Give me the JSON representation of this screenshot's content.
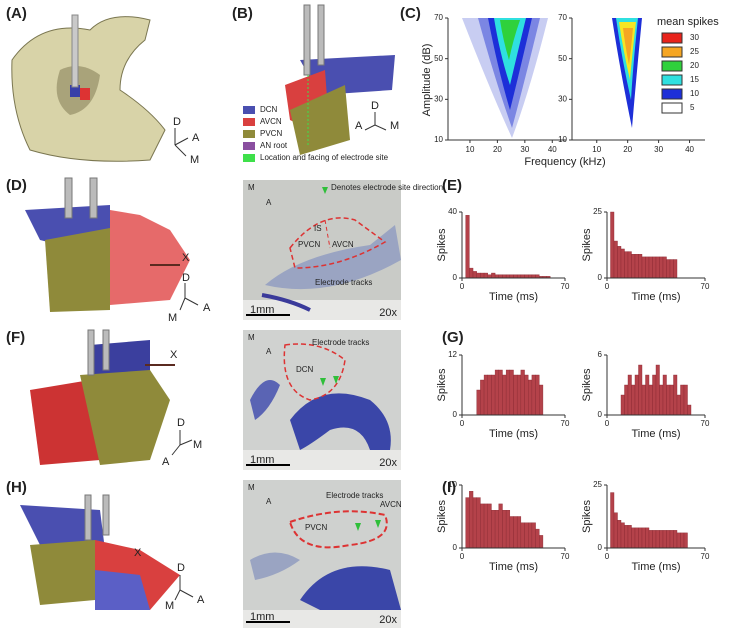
{
  "panel_labels": [
    "(A)",
    "(B)",
    "(C)",
    "(D)",
    "(E)",
    "(F)",
    "(G)",
    "(H)",
    "(I)"
  ],
  "panel_a": {
    "axes": [
      "D",
      "A",
      "M"
    ]
  },
  "panel_b": {
    "axes": [
      "D",
      "A",
      "M"
    ],
    "legend": [
      {
        "name": "DCN",
        "color": "#4a4fb0"
      },
      {
        "name": "AVCN",
        "color": "#d9403f"
      },
      {
        "name": "PVCN",
        "color": "#8f8a3a"
      },
      {
        "name": "AN root",
        "color": "#8a4fa0"
      },
      {
        "name": "Location and facing of electrode site",
        "color": "#3ee04a"
      }
    ]
  },
  "panel_c": {
    "type": "contour",
    "ylabel": "Amplitude (dB)",
    "xlabel": "Frequency (kHz)",
    "xlim": [
      2,
      45
    ],
    "xticks": [
      10,
      20,
      30,
      40
    ],
    "ylim": [
      10,
      70
    ],
    "yticks": [
      10,
      30,
      50,
      70
    ],
    "legend_title": "mean spikes",
    "levels": [
      {
        "value": 30,
        "color": "#e8231b"
      },
      {
        "value": 25,
        "color": "#f5a623"
      },
      {
        "value": 20,
        "color": "#2fd13c"
      },
      {
        "value": 15,
        "color": "#2fe0e0"
      },
      {
        "value": 10,
        "color": "#1d2fd8"
      },
      {
        "value": 5,
        "color": "#ffffff"
      }
    ]
  },
  "models": [
    {
      "marker": "X",
      "axes": [
        "D",
        "A",
        "M"
      ]
    },
    {
      "marker": "X",
      "axes": [
        "D",
        "A",
        "M"
      ]
    },
    {
      "marker": "X",
      "axes": [
        "D",
        "A",
        "M"
      ]
    }
  ],
  "sections": [
    {
      "axes": [
        "M",
        "A"
      ],
      "note": "Denotes electrode site direction",
      "regions": [
        "IS",
        "AVCN",
        "PVCN"
      ],
      "tracks": "Electrode tracks",
      "scale": "1mm",
      "magnification": "20x"
    },
    {
      "axes": [
        "M",
        "A"
      ],
      "regions": [
        "DCN"
      ],
      "tracks": "Electrode tracks",
      "scale": "1mm",
      "magnification": "20x"
    },
    {
      "axes": [
        "M",
        "A"
      ],
      "regions": [
        "AVCN",
        "PVCN"
      ],
      "tracks": "Electrode tracks",
      "scale": "1mm",
      "magnification": "20x"
    }
  ],
  "histograms": [
    {
      "plots": [
        {
          "type": "histogram",
          "ylabel": "Spikes",
          "xlabel": "Time (ms)",
          "color": "#b4424a",
          "xlim": [
            0,
            70
          ],
          "xticks": [
            0,
            70
          ],
          "ylim": [
            0,
            40
          ],
          "yticks": [
            0,
            40
          ],
          "bins": [
            0,
            2.5,
            5,
            7.5,
            10,
            12.5,
            15,
            17.5,
            20,
            22.5,
            25,
            27.5,
            30,
            32.5,
            35,
            37.5,
            40,
            42.5,
            45,
            47.5,
            50,
            52.5,
            55,
            57.5,
            60,
            62.5,
            65,
            67.5,
            70
          ],
          "values": [
            0,
            38,
            6,
            4,
            3,
            3,
            3,
            2,
            3,
            2,
            2,
            2,
            2,
            2,
            2,
            2,
            2,
            2,
            2,
            2,
            2,
            1,
            1,
            1,
            0,
            0,
            0,
            0
          ]
        },
        {
          "type": "histogram",
          "ylabel": "Spikes",
          "xlabel": "Time (ms)",
          "color": "#b4424a",
          "xlim": [
            0,
            70
          ],
          "xticks": [
            0,
            70
          ],
          "ylim": [
            0,
            25
          ],
          "yticks": [
            0,
            25
          ],
          "bins": [
            0,
            2.5,
            5,
            7.5,
            10,
            12.5,
            15,
            17.5,
            20,
            22.5,
            25,
            27.5,
            30,
            32.5,
            35,
            37.5,
            40,
            42.5,
            45,
            47.5,
            50,
            52.5,
            55,
            57.5,
            60,
            62.5,
            65,
            67.5,
            70
          ],
          "values": [
            0,
            25,
            14,
            12,
            11,
            10,
            10,
            9,
            9,
            9,
            8,
            8,
            8,
            8,
            8,
            8,
            8,
            7,
            7,
            7,
            0,
            0,
            0,
            0,
            0,
            0,
            0,
            0
          ]
        }
      ]
    },
    {
      "plots": [
        {
          "type": "histogram",
          "ylabel": "Spikes",
          "xlabel": "Time (ms)",
          "color": "#b4424a",
          "xlim": [
            0,
            70
          ],
          "xticks": [
            0,
            70
          ],
          "ylim": [
            0,
            12
          ],
          "yticks": [
            0,
            12
          ],
          "bins": [
            0,
            2.5,
            5,
            7.5,
            10,
            12.5,
            15,
            17.5,
            20,
            22.5,
            25,
            27.5,
            30,
            32.5,
            35,
            37.5,
            40,
            42.5,
            45,
            47.5,
            50,
            52.5,
            55,
            57.5,
            60,
            62.5,
            65,
            67.5,
            70
          ],
          "values": [
            0,
            0,
            0,
            0,
            5,
            7,
            8,
            8,
            8,
            9,
            9,
            8,
            9,
            9,
            8,
            8,
            9,
            8,
            7,
            8,
            8,
            6,
            0,
            0,
            0,
            0,
            0,
            0
          ]
        },
        {
          "type": "histogram",
          "ylabel": "Spikes",
          "xlabel": "Time (ms)",
          "color": "#b4424a",
          "xlim": [
            0,
            70
          ],
          "xticks": [
            0,
            70
          ],
          "ylim": [
            0,
            6
          ],
          "yticks": [
            0,
            6
          ],
          "bins": [
            0,
            2.5,
            5,
            7.5,
            10,
            12.5,
            15,
            17.5,
            20,
            22.5,
            25,
            27.5,
            30,
            32.5,
            35,
            37.5,
            40,
            42.5,
            45,
            47.5,
            50,
            52.5,
            55,
            57.5,
            60,
            62.5,
            65,
            67.5,
            70
          ],
          "values": [
            0,
            0,
            0,
            0,
            2,
            3,
            4,
            3,
            4,
            5,
            3,
            4,
            3,
            4,
            5,
            3,
            4,
            3,
            3,
            4,
            2,
            3,
            3,
            1,
            0,
            0,
            0,
            0
          ]
        }
      ]
    },
    {
      "plots": [
        {
          "type": "histogram",
          "ylabel": "Spikes",
          "xlabel": "Time (ms)",
          "color": "#b4424a",
          "xlim": [
            0,
            70
          ],
          "xticks": [
            0,
            70
          ],
          "ylim": [
            0,
            10
          ],
          "yticks": [
            0,
            10
          ],
          "bins": [
            0,
            2.5,
            5,
            7.5,
            10,
            12.5,
            15,
            17.5,
            20,
            22.5,
            25,
            27.5,
            30,
            32.5,
            35,
            37.5,
            40,
            42.5,
            45,
            47.5,
            50,
            52.5,
            55,
            57.5,
            60,
            62.5,
            65,
            67.5,
            70
          ],
          "values": [
            0,
            8,
            9,
            8,
            8,
            7,
            7,
            7,
            6,
            6,
            7,
            6,
            6,
            5,
            5,
            5,
            4,
            4,
            4,
            4,
            3,
            2,
            0,
            0,
            0,
            0,
            0,
            0
          ]
        },
        {
          "type": "histogram",
          "ylabel": "Spikes",
          "xlabel": "Time (ms)",
          "color": "#b4424a",
          "xlim": [
            0,
            70
          ],
          "xticks": [
            0,
            70
          ],
          "ylim": [
            0,
            25
          ],
          "yticks": [
            0,
            25
          ],
          "bins": [
            0,
            2.5,
            5,
            7.5,
            10,
            12.5,
            15,
            17.5,
            20,
            22.5,
            25,
            27.5,
            30,
            32.5,
            35,
            37.5,
            40,
            42.5,
            45,
            47.5,
            50,
            52.5,
            55,
            57.5,
            60,
            62.5,
            65,
            67.5,
            70
          ],
          "values": [
            0,
            22,
            14,
            11,
            10,
            9,
            9,
            8,
            8,
            8,
            8,
            8,
            7,
            7,
            7,
            7,
            7,
            7,
            7,
            7,
            6,
            6,
            6,
            0,
            0,
            0,
            0,
            0
          ]
        }
      ]
    }
  ]
}
